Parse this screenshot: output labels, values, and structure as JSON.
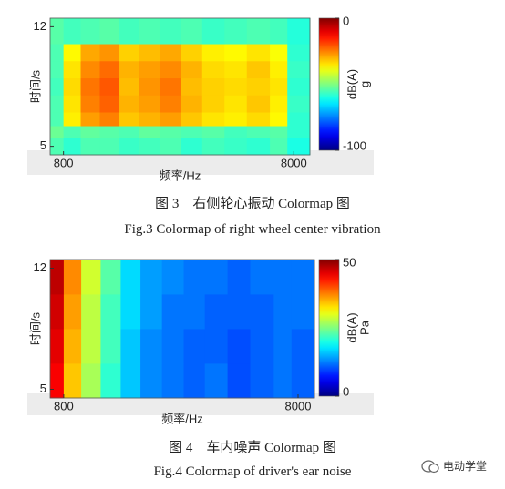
{
  "chart_data": [
    {
      "type": "heatmap",
      "colormap": "jet",
      "log_x": true,
      "x_label": "频率/Hz",
      "y_label": "时间/s",
      "colorbar_label": "dB(A)",
      "colorbar_unit": "g",
      "xlim": [
        700,
        9400
      ],
      "xticks": [
        800,
        8000
      ],
      "ylim": [
        4.5,
        12.5
      ],
      "yticks": [
        5,
        12
      ],
      "clim": [
        -100,
        0
      ],
      "cticks": [
        -100,
        0
      ],
      "x_bins": [
        700,
        800,
        950,
        1150,
        1400,
        1700,
        2100,
        2600,
        3200,
        4000,
        5000,
        6300,
        7500,
        9400
      ],
      "y_bins": [
        4.5,
        5.5,
        6.2,
        7,
        8,
        9,
        10,
        11,
        12.5
      ],
      "z": [
        [
          -55,
          -58,
          -55,
          -55,
          -57,
          -56,
          -55,
          -58,
          -56,
          -57,
          -58,
          -55,
          -60
        ],
        [
          -52,
          -55,
          -53,
          -54,
          -55,
          -53,
          -54,
          -55,
          -54,
          -56,
          -55,
          -54,
          -58
        ],
        [
          -55,
          -36,
          -28,
          -25,
          -32,
          -30,
          -28,
          -32,
          -35,
          -36,
          -34,
          -37,
          -58
        ],
        [
          -55,
          -35,
          -25,
          -22,
          -30,
          -28,
          -25,
          -30,
          -33,
          -35,
          -32,
          -36,
          -57
        ],
        [
          -56,
          -34,
          -24,
          -21,
          -31,
          -27,
          -24,
          -31,
          -33,
          -34,
          -33,
          -35,
          -58
        ],
        [
          -55,
          -35,
          -26,
          -23,
          -30,
          -28,
          -26,
          -30,
          -34,
          -35,
          -32,
          -36,
          -57
        ],
        [
          -55,
          -37,
          -29,
          -27,
          -33,
          -31,
          -29,
          -33,
          -36,
          -37,
          -35,
          -38,
          -58
        ],
        [
          -54,
          -56,
          -55,
          -54,
          -56,
          -55,
          -56,
          -55,
          -57,
          -56,
          -55,
          -56,
          -59
        ]
      ]
    },
    {
      "type": "heatmap",
      "colormap": "jet",
      "log_x": true,
      "x_label": "频率/Hz",
      "y_label": "时间/s",
      "colorbar_label": "dB(A)",
      "colorbar_unit": "Pa",
      "xlim": [
        700,
        9400
      ],
      "xticks": [
        800,
        8000
      ],
      "ylim": [
        4.5,
        12.5
      ],
      "yticks": [
        5,
        12
      ],
      "clim": [
        0,
        50
      ],
      "cticks": [
        0,
        50
      ],
      "x_bins": [
        700,
        800,
        950,
        1150,
        1400,
        1700,
        2100,
        2600,
        3200,
        4000,
        5000,
        6300,
        7500,
        9400
      ],
      "y_bins": [
        4.5,
        6.5,
        8.5,
        10.5,
        12.5
      ],
      "z": [
        [
          44,
          34,
          27,
          21,
          16,
          13,
          12,
          11,
          12,
          10,
          11,
          12,
          11
        ],
        [
          45,
          35,
          28,
          22,
          16,
          13,
          12,
          11,
          11,
          10,
          11,
          12,
          11
        ],
        [
          46,
          36,
          28,
          22,
          17,
          14,
          12,
          12,
          11,
          11,
          11,
          12,
          12
        ],
        [
          47,
          37,
          29,
          23,
          17,
          14,
          13,
          12,
          12,
          11,
          12,
          12,
          12
        ]
      ]
    }
  ],
  "captions": [
    "图 3　右侧轮心振动 Colormap 图",
    "Fig.3 Colormap of right wheel center vibration",
    "图 4　车内噪声 Colormap 图",
    "Fig.4 Colormap of driver's ear noise"
  ],
  "watermark": "电动学堂"
}
